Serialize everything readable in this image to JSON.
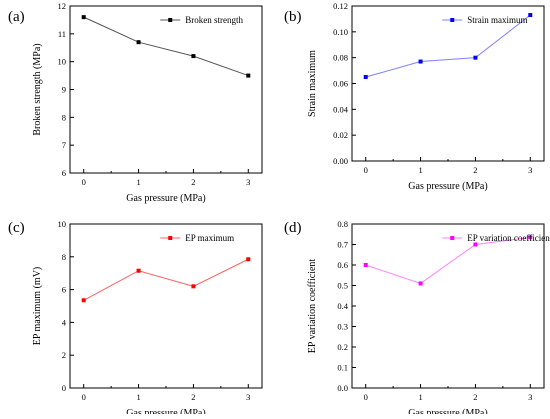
{
  "chart_data": [
    {
      "panel": "(a)",
      "type": "line",
      "x": [
        0,
        1,
        2,
        3
      ],
      "xlabel": "Gas pressure (MPa)",
      "ylabel": "Broken strength (MPa)",
      "xlim": [
        -0.25,
        3.25
      ],
      "ylim": [
        6,
        12
      ],
      "xticks": [
        "0",
        "1",
        "2",
        "3"
      ],
      "yticks": [
        "6",
        "7",
        "8",
        "9",
        "10",
        "11",
        "12"
      ],
      "series": [
        {
          "name": "Broken strength",
          "values": [
            11.6,
            10.7,
            10.2,
            9.5
          ],
          "color": "#555555",
          "marker": "#000000"
        }
      ],
      "legend": "top-right"
    },
    {
      "panel": "(b)",
      "type": "line",
      "x": [
        0,
        1,
        2,
        3
      ],
      "xlabel": "Gas pressure (MPa)",
      "ylabel": "Strain maximum",
      "xlim": [
        -0.25,
        3.25
      ],
      "ylim": [
        0,
        0.12
      ],
      "xticks": [
        "0",
        "1",
        "2",
        "3"
      ],
      "yticks": [
        "0.00",
        "0.02",
        "0.04",
        "0.06",
        "0.08",
        "0.10",
        "0.12"
      ],
      "series": [
        {
          "name": "Strain maximum",
          "values": [
            0.065,
            0.077,
            0.08,
            0.113
          ],
          "color": "#8080ff",
          "marker": "#0000ff"
        }
      ],
      "legend": "top-right"
    },
    {
      "panel": "(c)",
      "type": "line",
      "x": [
        0,
        1,
        2,
        3
      ],
      "xlabel": "Gas pressure (MPa)",
      "ylabel": "EP maximum (mV)",
      "xlim": [
        -0.25,
        3.25
      ],
      "ylim": [
        0,
        10
      ],
      "xticks": [
        "0",
        "1",
        "2",
        "3"
      ],
      "yticks": [
        "0",
        "2",
        "4",
        "6",
        "8",
        "10"
      ],
      "series": [
        {
          "name": "EP maximum",
          "values": [
            5.35,
            7.15,
            6.2,
            7.85
          ],
          "color": "#ff6060",
          "marker": "#ff0000"
        }
      ],
      "legend": "top-right"
    },
    {
      "panel": "(d)",
      "type": "line",
      "x": [
        0,
        1,
        2,
        3
      ],
      "xlabel": "Gas pressure (MPa)",
      "ylabel": "EP variation coefficient",
      "xlim": [
        -0.25,
        3.25
      ],
      "ylim": [
        0,
        0.8
      ],
      "xticks": [
        "0",
        "1",
        "2",
        "3"
      ],
      "yticks": [
        "0.0",
        "0.1",
        "0.2",
        "0.3",
        "0.4",
        "0.5",
        "0.6",
        "0.7",
        "0.8"
      ],
      "series": [
        {
          "name": "EP variation coefficient",
          "values": [
            0.6,
            0.51,
            0.7,
            0.735
          ],
          "color": "#ff80ff",
          "marker": "#ff00ff"
        }
      ],
      "legend": "top-right"
    }
  ]
}
